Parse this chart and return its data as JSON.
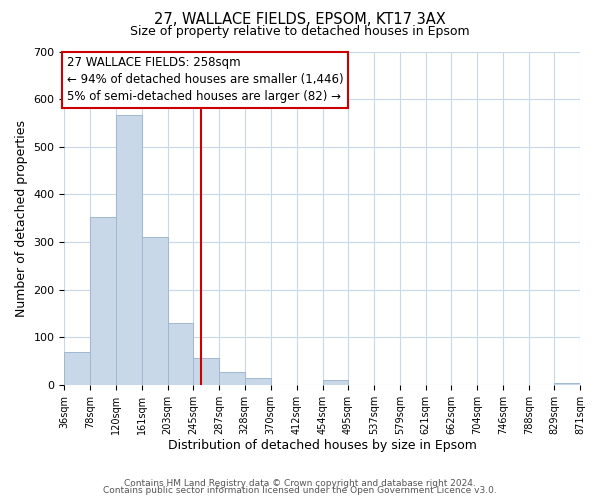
{
  "title1": "27, WALLACE FIELDS, EPSOM, KT17 3AX",
  "title2": "Size of property relative to detached houses in Epsom",
  "xlabel": "Distribution of detached houses by size in Epsom",
  "ylabel": "Number of detached properties",
  "bar_color": "#c8d8e8",
  "bar_edge_color": "#a0b8d0",
  "vline_x": 258,
  "vline_color": "#cc0000",
  "annotation_line1": "27 WALLACE FIELDS: 258sqm",
  "annotation_line2": "← 94% of detached houses are smaller (1,446)",
  "annotation_line3": "5% of semi-detached houses are larger (82) →",
  "annotation_box_color": "#ffffff",
  "annotation_box_edge": "#cc0000",
  "bin_edges": [
    36,
    78,
    120,
    161,
    203,
    245,
    287,
    328,
    370,
    412,
    454,
    495,
    537,
    579,
    621,
    662,
    704,
    746,
    788,
    829,
    871
  ],
  "bar_heights": [
    68,
    353,
    567,
    311,
    130,
    57,
    27,
    14,
    0,
    0,
    10,
    0,
    0,
    0,
    0,
    0,
    0,
    0,
    0,
    3
  ],
  "ylim": [
    0,
    700
  ],
  "yticks": [
    0,
    100,
    200,
    300,
    400,
    500,
    600,
    700
  ],
  "footer_text1": "Contains HM Land Registry data © Crown copyright and database right 2024.",
  "footer_text2": "Contains public sector information licensed under the Open Government Licence v3.0.",
  "bg_color": "#ffffff",
  "grid_color": "#c8d8e8"
}
